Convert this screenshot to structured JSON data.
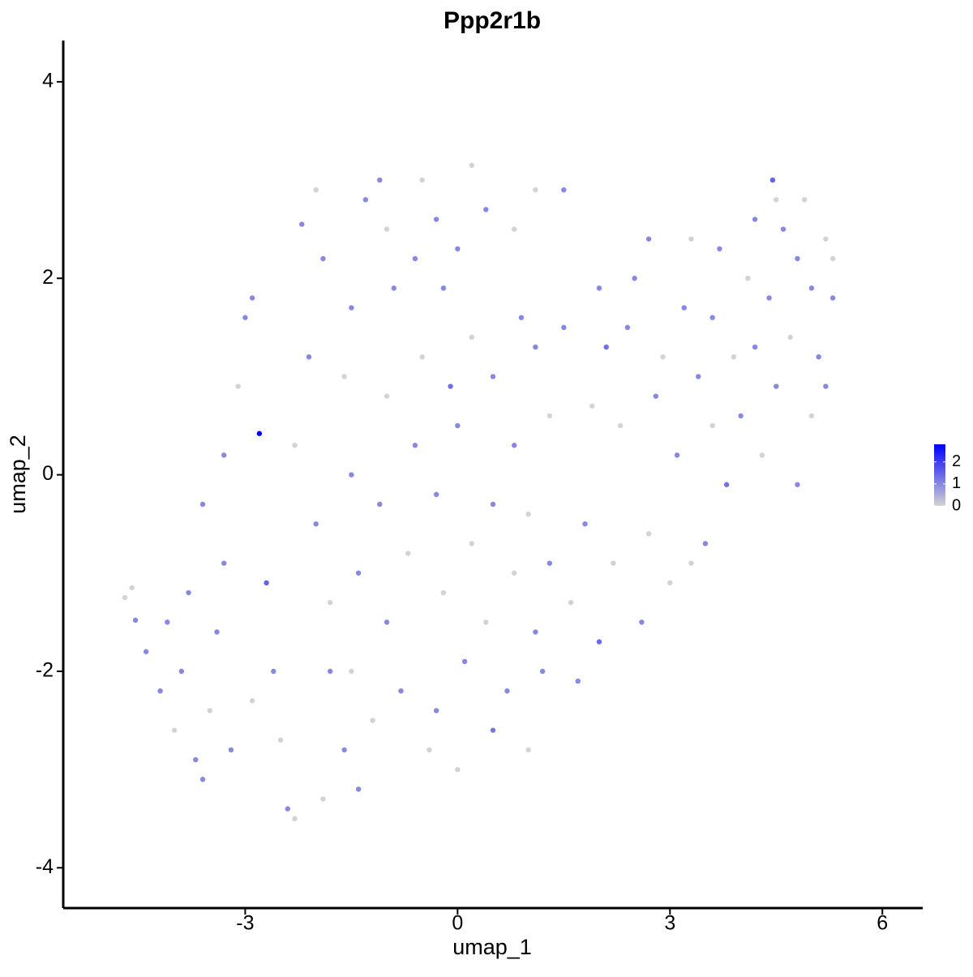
{
  "chart_data": {
    "type": "scatter",
    "title": "Ppp2r1b",
    "x_label": "umap_1",
    "y_label": "umap_2",
    "x": [
      -4.7,
      -4.6,
      -4.55,
      -4.4,
      -4.2,
      -4.1,
      -4.0,
      -3.9,
      -3.8,
      -3.7,
      -3.6,
      -3.5,
      -3.4,
      -3.3,
      -3.6,
      -3.3,
      -3.1,
      -3.0,
      -2.9,
      -2.8,
      -2.7,
      -2.6,
      -2.5,
      -2.4,
      -2.3,
      -2.2,
      -2.0,
      -1.9,
      -2.1,
      -2.3,
      -2.0,
      -1.8,
      -1.9,
      -1.6,
      -1.5,
      -1.4,
      -1.5,
      -1.6,
      -1.5,
      -1.3,
      -1.1,
      -1.0,
      -0.9,
      -1.0,
      -1.1,
      -1.0,
      -1.2,
      -1.4,
      -0.8,
      -0.7,
      -0.6,
      -0.5,
      -0.6,
      -0.5,
      -0.3,
      -0.2,
      -0.1,
      -0.3,
      -0.2,
      -0.3,
      -0.4,
      0.0,
      0.1,
      0.2,
      0.0,
      0.2,
      0.0,
      0.2,
      0.4,
      0.5,
      0.5,
      0.4,
      0.5,
      0.7,
      0.8,
      0.8,
      0.9,
      0.8,
      1.1,
      1.1,
      1.0,
      1.1,
      1.0,
      1.2,
      1.3,
      1.3,
      1.5,
      1.5,
      1.6,
      1.7,
      1.8,
      1.9,
      2.0,
      2.1,
      2.0,
      2.2,
      2.3,
      2.4,
      2.5,
      2.6,
      2.7,
      2.8,
      2.7,
      2.9,
      3.0,
      3.1,
      3.2,
      3.3,
      3.3,
      3.4,
      3.5,
      3.6,
      3.6,
      3.7,
      3.8,
      3.9,
      4.0,
      4.1,
      4.2,
      4.2,
      4.3,
      4.4,
      4.45,
      4.5,
      4.5,
      4.6,
      4.7,
      4.8,
      4.8,
      4.9,
      5.0,
      5.0,
      5.1,
      5.2,
      5.3,
      5.3,
      5.2,
      -1.8,
      -2.9,
      -3.2
    ],
    "y": [
      -1.25,
      -1.15,
      -1.48,
      -1.8,
      -2.2,
      -1.5,
      -2.6,
      -2.0,
      -1.2,
      -2.9,
      -3.1,
      -2.4,
      -1.6,
      -0.9,
      -0.3,
      0.2,
      0.9,
      1.6,
      1.8,
      0.42,
      -1.1,
      -2.0,
      -2.7,
      -3.4,
      -3.5,
      2.55,
      2.9,
      2.2,
      1.2,
      0.3,
      -0.5,
      -1.3,
      -3.3,
      -2.8,
      -2.0,
      -1.0,
      0.0,
      1.0,
      1.7,
      2.8,
      3.0,
      2.5,
      1.9,
      0.8,
      -0.3,
      -1.5,
      -2.5,
      -3.2,
      -2.2,
      -0.8,
      0.3,
      1.2,
      2.2,
      3.0,
      2.6,
      1.9,
      0.9,
      -0.2,
      -1.2,
      -2.4,
      -2.8,
      -3.0,
      -1.9,
      -0.7,
      0.5,
      1.4,
      2.3,
      3.15,
      2.7,
      1.0,
      -0.3,
      -1.5,
      -2.6,
      -2.2,
      -1.0,
      0.3,
      1.6,
      2.5,
      2.9,
      1.3,
      -0.4,
      -1.6,
      -2.8,
      -2.0,
      -0.9,
      0.6,
      1.5,
      2.9,
      -1.3,
      -2.1,
      -0.5,
      0.7,
      1.9,
      1.3,
      -1.7,
      -0.9,
      0.5,
      1.5,
      2.0,
      -1.5,
      -0.6,
      0.8,
      2.4,
      1.2,
      -1.1,
      0.2,
      1.7,
      2.4,
      -0.9,
      1.0,
      -0.7,
      0.5,
      1.6,
      2.3,
      -0.1,
      1.2,
      0.6,
      2.0,
      1.3,
      2.6,
      0.2,
      1.8,
      3.0,
      2.8,
      0.9,
      2.5,
      1.4,
      -0.1,
      2.2,
      2.8,
      1.9,
      0.6,
      1.2,
      2.4,
      1.8,
      2.2,
      0.9,
      -2.0,
      -2.3,
      -2.8
    ],
    "values": [
      0,
      0,
      1,
      1,
      1,
      1,
      0,
      1,
      1,
      1,
      1,
      0,
      1,
      1,
      1,
      1,
      0,
      1,
      1,
      2.8,
      1.5,
      1,
      0,
      1,
      0,
      1,
      0,
      1,
      1,
      0,
      1,
      0,
      0,
      1,
      0,
      1,
      1,
      0,
      1,
      1,
      1,
      0,
      1,
      0,
      1,
      1,
      0,
      1,
      1,
      0,
      1,
      0,
      1,
      0,
      1,
      1,
      1.3,
      1,
      0,
      1,
      0,
      0,
      1,
      0,
      1,
      0,
      1,
      0,
      1,
      1,
      1,
      0,
      1.2,
      1,
      0,
      1,
      1,
      0,
      0,
      1,
      0,
      1,
      0,
      1,
      1,
      0,
      1,
      1,
      0,
      1,
      1,
      0,
      1,
      1.3,
      1.4,
      0,
      0,
      1,
      1,
      1,
      0,
      1,
      1,
      0,
      0,
      1,
      1,
      0,
      0,
      1,
      1,
      0,
      1,
      1,
      1.3,
      0,
      1,
      0,
      1,
      1,
      0,
      1,
      1.5,
      0,
      1,
      1,
      0,
      1,
      1,
      0,
      1,
      0,
      1,
      0,
      1,
      0,
      1,
      1,
      0,
      1
    ],
    "xlim": [
      -5.57,
      6.57
    ],
    "ylim": [
      -4.41,
      4.42
    ],
    "xticks": [
      -3,
      0,
      3,
      6
    ],
    "yticks": [
      -4,
      -2,
      0,
      2,
      4
    ],
    "color_low": "#d3d3d3",
    "color_high": "#0000ff",
    "color_lim": [
      0,
      2.8
    ],
    "color_ticks": [
      0,
      1,
      2
    ],
    "legend": "right"
  }
}
